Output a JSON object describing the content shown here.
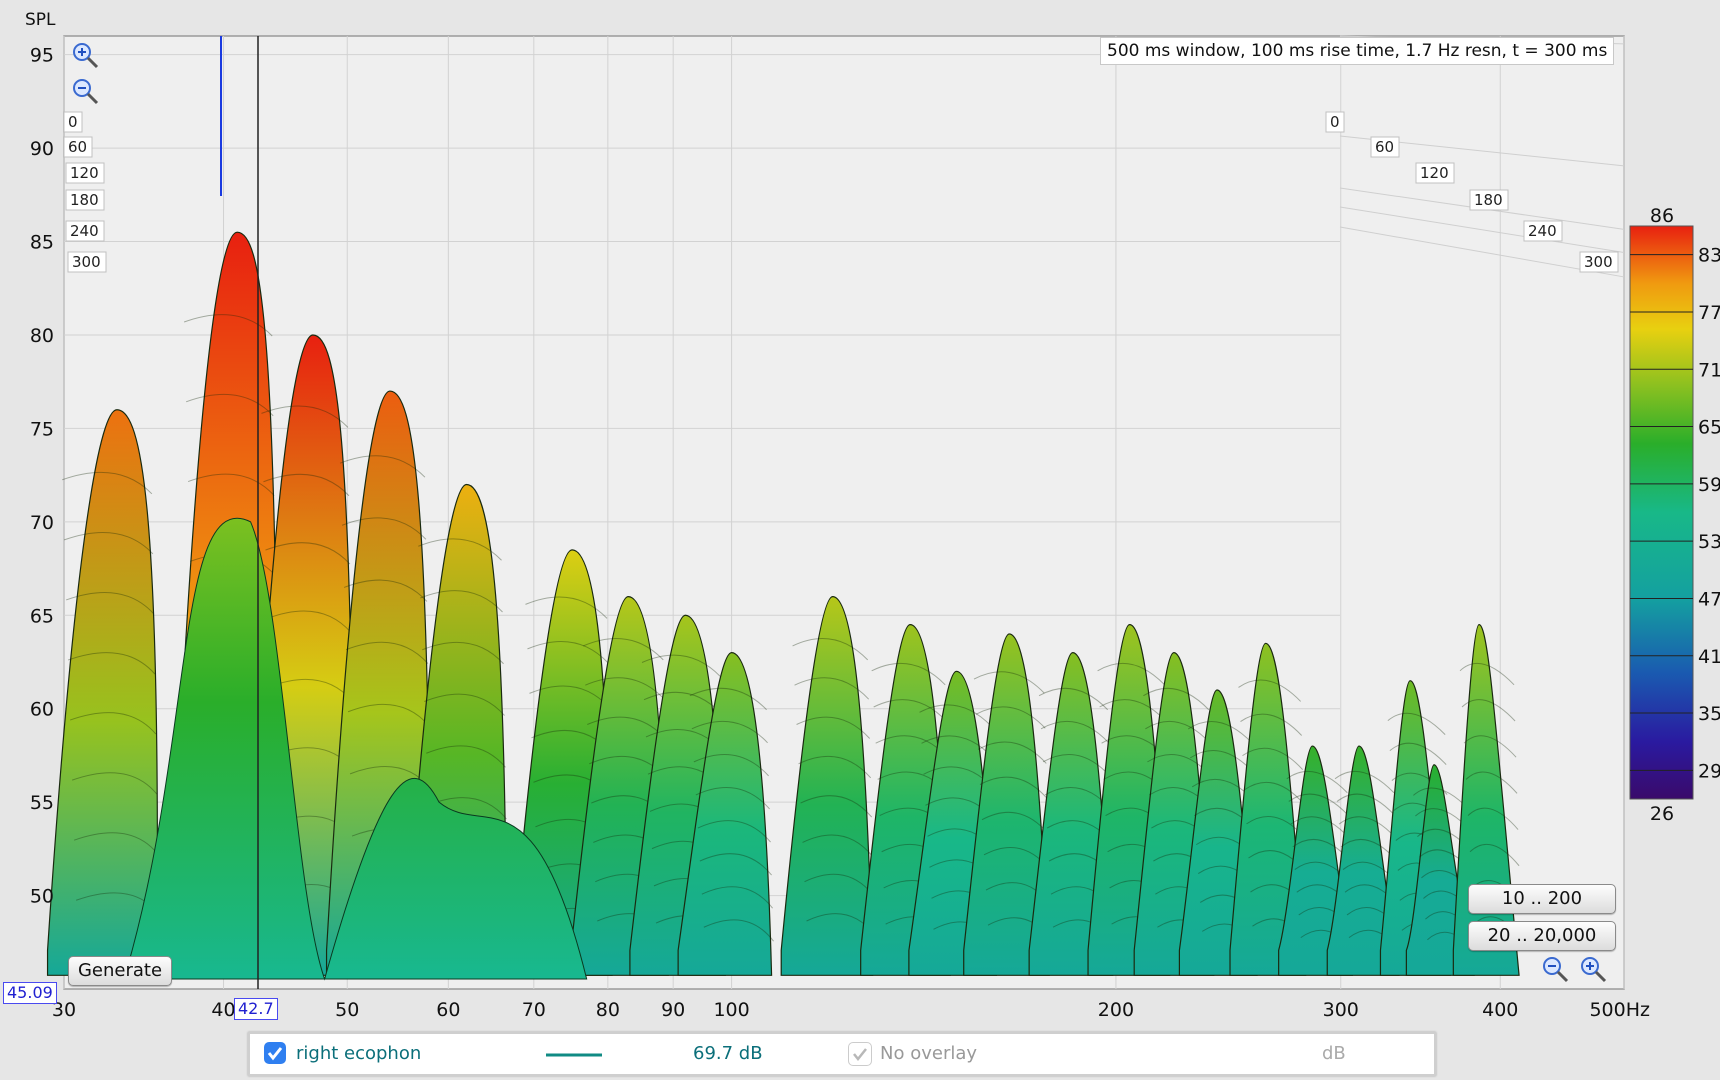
{
  "title_info": "500 ms window, 100 ms rise time,  1.7 Hz resn, t = 300 ms",
  "axis_y_label": "SPL",
  "axis_x_unit": "Hz",
  "cursor_spl": "45.09",
  "cursor_freq": "42.7",
  "buttons": {
    "generate": "Generate",
    "range_low": "10 .. 200",
    "range_full": "20 .. 20,000"
  },
  "legend": {
    "name": "right ecophon",
    "value": "69.7 dB",
    "overlay": "No overlay",
    "unit": "dB"
  },
  "colors": {
    "accent_blue": "#2f6fd8",
    "trace_teal": "#108b84",
    "peak": "#c83010",
    "plot_bg": "#efefef"
  },
  "chart_data": {
    "type": "waterfall",
    "x_axis": {
      "scale": "log",
      "min": 30,
      "max": 500,
      "ticks": [
        30,
        40,
        50,
        60,
        70,
        80,
        90,
        100,
        200,
        300,
        400,
        500
      ],
      "tick_labels": [
        "30",
        "40",
        "50",
        "60",
        "70",
        "80",
        "90",
        "100",
        "200",
        "300",
        "400",
        "500Hz"
      ]
    },
    "y_axis": {
      "label": "SPL",
      "min": 45,
      "max": 96,
      "ticks": [
        50,
        55,
        60,
        65,
        70,
        75,
        80,
        85,
        90,
        95
      ]
    },
    "time_axis": {
      "unit": "ms",
      "ticks": [
        0,
        60,
        120,
        180,
        240,
        300
      ]
    },
    "colorscale": {
      "min": 26,
      "max": 86,
      "ticks": [
        29,
        35,
        41,
        47,
        53,
        59,
        65,
        71,
        77,
        83
      ],
      "end_labels": [
        "86",
        "26"
      ]
    },
    "ridges": [
      {
        "freq": 33,
        "peak_spl": 76
      },
      {
        "freq": 41,
        "peak_spl": 85.5
      },
      {
        "freq": 47,
        "peak_spl": 80
      },
      {
        "freq": 54,
        "peak_spl": 77
      },
      {
        "freq": 62,
        "peak_spl": 72
      },
      {
        "freq": 75,
        "peak_spl": 68.5
      },
      {
        "freq": 83,
        "peak_spl": 66
      },
      {
        "freq": 92,
        "peak_spl": 65
      },
      {
        "freq": 100,
        "peak_spl": 63
      },
      {
        "freq": 120,
        "peak_spl": 66
      },
      {
        "freq": 138,
        "peak_spl": 64.5
      },
      {
        "freq": 150,
        "peak_spl": 62
      },
      {
        "freq": 165,
        "peak_spl": 64
      },
      {
        "freq": 185,
        "peak_spl": 63
      },
      {
        "freq": 205,
        "peak_spl": 64.5
      },
      {
        "freq": 222,
        "peak_spl": 63
      },
      {
        "freq": 240,
        "peak_spl": 61
      },
      {
        "freq": 262,
        "peak_spl": 63.5
      },
      {
        "freq": 285,
        "peak_spl": 58
      },
      {
        "freq": 310,
        "peak_spl": 58
      },
      {
        "freq": 340,
        "peak_spl": 61.5
      },
      {
        "freq": 355,
        "peak_spl": 57
      },
      {
        "freq": 385,
        "peak_spl": 64.5
      }
    ]
  }
}
